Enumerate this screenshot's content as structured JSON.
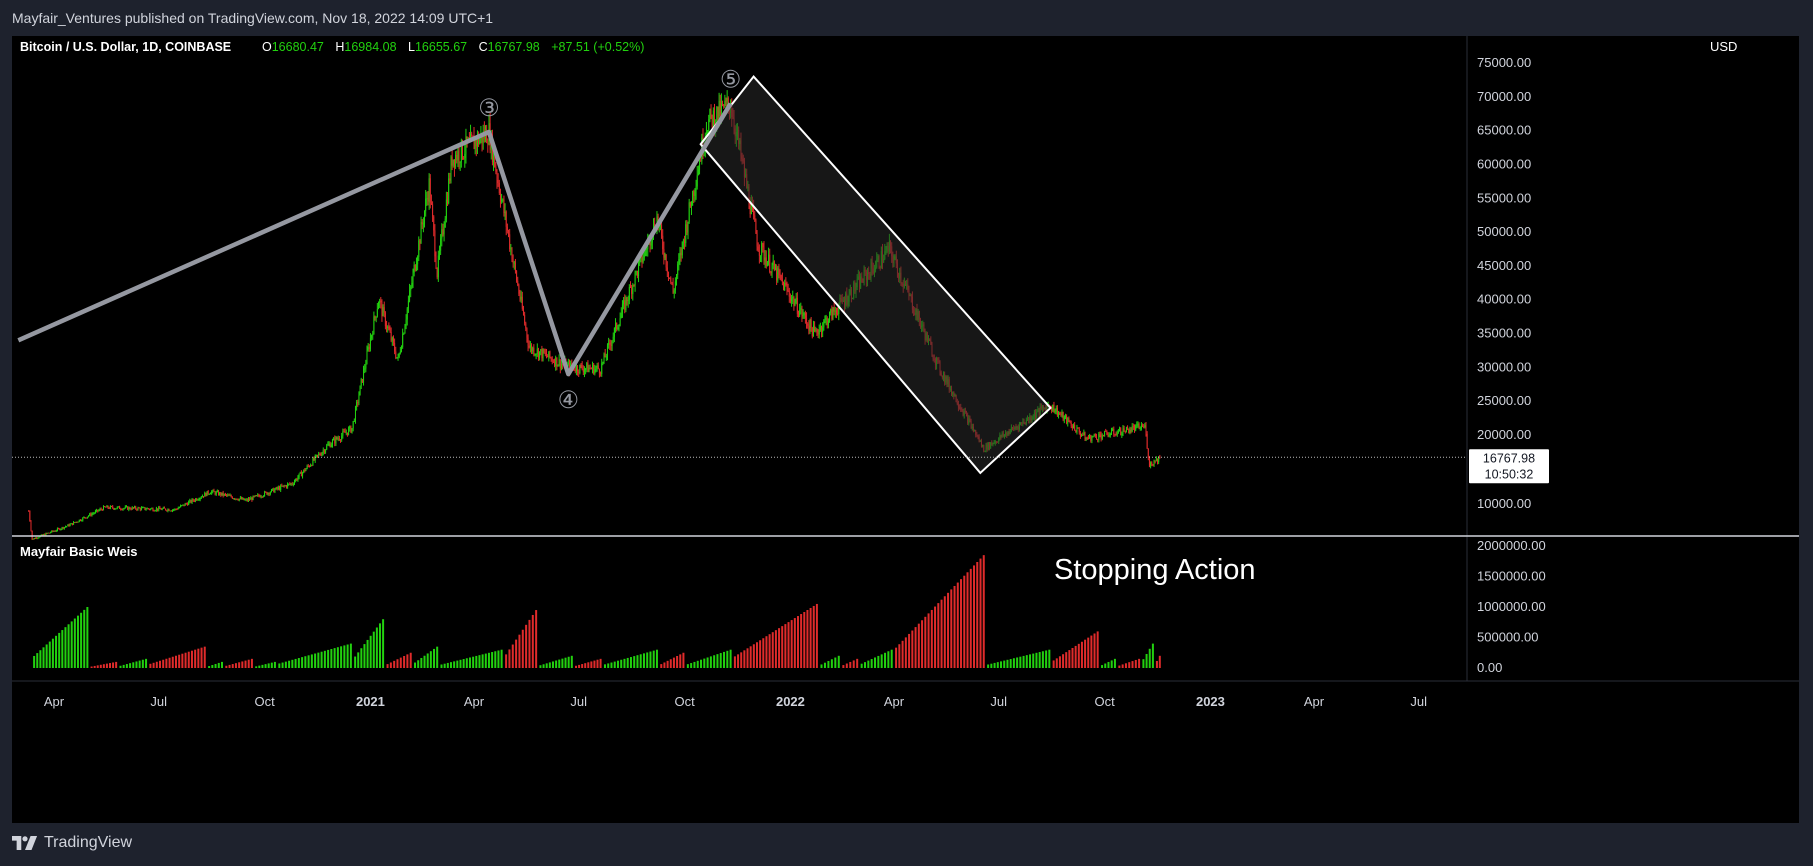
{
  "header": {
    "published": "Mayfair_Ventures published on TradingView.com, Nov 18, 2022 14:09 UTC+1"
  },
  "footer": {
    "brand": "TradingView",
    "logo_icon": "tradingview-logo-icon"
  },
  "legend": {
    "symbol": "Bitcoin / U.S. Dollar, 1D, COINBASE",
    "open_label": "O",
    "open": "16680.47",
    "high_label": "H",
    "high": "16984.08",
    "low_label": "L",
    "low": "16655.67",
    "close_label": "C",
    "close": "16767.98",
    "change": "+87.51 (+0.52%)"
  },
  "colors": {
    "up": "#22d10f",
    "down": "#e02b2b",
    "wave": "#9598a1",
    "channel": "#ffffff",
    "channel_fill": "#2a2a2a"
  },
  "price_pane": {
    "currency": "USD",
    "y_ticks": [
      "75000.00",
      "70000.00",
      "65000.00",
      "60000.00",
      "55000.00",
      "50000.00",
      "45000.00",
      "40000.00",
      "35000.00",
      "30000.00",
      "25000.00",
      "20000.00",
      "10000.00"
    ],
    "last_price_label": "16767.98",
    "countdown_label": "10:50:32"
  },
  "volume_pane": {
    "title": "Mayfair Basic Weis",
    "annotation": "Stopping Action",
    "y_ticks": [
      "2000000.00",
      "1500000.00",
      "1000000.00",
      "500000.00",
      "0.00"
    ]
  },
  "x_axis": {
    "ticks": [
      "Apr",
      "Jul",
      "Oct",
      "2021",
      "Apr",
      "Jul",
      "Oct",
      "2022",
      "Apr",
      "Jul",
      "Oct",
      "2023",
      "Apr",
      "Jul"
    ]
  },
  "chart_data": {
    "type": "candlestick",
    "title": "Bitcoin / U.S. Dollar, 1D, COINBASE",
    "x_range": [
      "2020-03",
      "2023-08"
    ],
    "ylim": [
      5000,
      80000
    ],
    "price_path": [
      [
        "2020-03-10",
        9000
      ],
      [
        "2020-03-13",
        4900
      ],
      [
        "2020-04-15",
        7000
      ],
      [
        "2020-05-15",
        9500
      ],
      [
        "2020-07-15",
        9200
      ],
      [
        "2020-08-15",
        11800
      ],
      [
        "2020-09-15",
        10500
      ],
      [
        "2020-10-25",
        13000
      ],
      [
        "2020-11-25",
        18500
      ],
      [
        "2020-12-16",
        21000
      ],
      [
        "2021-01-08",
        40000
      ],
      [
        "2021-01-25",
        31000
      ],
      [
        "2021-02-21",
        57000
      ],
      [
        "2021-02-28",
        44000
      ],
      [
        "2021-03-13",
        61000
      ],
      [
        "2021-04-14",
        64800
      ],
      [
        "2021-05-19",
        33000
      ],
      [
        "2021-06-22",
        30000
      ],
      [
        "2021-07-20",
        29800
      ],
      [
        "2021-09-07",
        52000
      ],
      [
        "2021-09-21",
        41000
      ],
      [
        "2021-10-20",
        66000
      ],
      [
        "2021-11-10",
        69000
      ],
      [
        "2021-12-04",
        48000
      ],
      [
        "2022-01-22",
        35000
      ],
      [
        "2022-03-28",
        47500
      ],
      [
        "2022-05-10",
        30000
      ],
      [
        "2022-06-18",
        18000
      ],
      [
        "2022-08-14",
        24500
      ],
      [
        "2022-09-15",
        19500
      ],
      [
        "2022-11-05",
        21300
      ],
      [
        "2022-11-09",
        15700
      ],
      [
        "2022-11-18",
        16768
      ]
    ],
    "elliott_wave": [
      {
        "label": "③",
        "date": "2021-04-14",
        "price": 64800
      },
      {
        "label": "④",
        "date": "2021-06-22",
        "price": 29000
      },
      {
        "label": "⑤",
        "date": "2021-11-10",
        "price": 69000
      }
    ],
    "wave_line_start": {
      "date": "2020-03-01",
      "price": 34000
    },
    "descending_channel": {
      "upper": [
        [
          "2021-11-30",
          73000
        ],
        [
          "2022-08-15",
          24000
        ]
      ],
      "lower": [
        [
          "2021-10-15",
          63000
        ],
        [
          "2022-06-15",
          14500
        ]
      ]
    },
    "weis_volume_waves": [
      {
        "start": "2020-03-12",
        "end": "2020-04-30",
        "dir": "up",
        "peak": 1000000
      },
      {
        "start": "2020-05-01",
        "end": "2020-05-25",
        "dir": "down",
        "peak": 100000
      },
      {
        "start": "2020-05-26",
        "end": "2020-06-20",
        "dir": "up",
        "peak": 150000
      },
      {
        "start": "2020-06-21",
        "end": "2020-08-10",
        "dir": "down",
        "peak": 350000
      },
      {
        "start": "2020-08-11",
        "end": "2020-08-25",
        "dir": "up",
        "peak": 100000
      },
      {
        "start": "2020-08-26",
        "end": "2020-09-20",
        "dir": "down",
        "peak": 150000
      },
      {
        "start": "2020-09-21",
        "end": "2020-10-10",
        "dir": "up",
        "peak": 100000
      },
      {
        "start": "2020-10-11",
        "end": "2020-12-15",
        "dir": "up",
        "peak": 400000
      },
      {
        "start": "2020-12-16",
        "end": "2021-01-12",
        "dir": "up",
        "peak": 800000
      },
      {
        "start": "2021-01-13",
        "end": "2021-02-05",
        "dir": "down",
        "peak": 250000
      },
      {
        "start": "2021-02-06",
        "end": "2021-02-28",
        "dir": "up",
        "peak": 350000
      },
      {
        "start": "2021-03-01",
        "end": "2021-04-25",
        "dir": "up",
        "peak": 300000
      },
      {
        "start": "2021-04-26",
        "end": "2021-05-25",
        "dir": "down",
        "peak": 950000
      },
      {
        "start": "2021-05-26",
        "end": "2021-06-25",
        "dir": "up",
        "peak": 200000
      },
      {
        "start": "2021-06-26",
        "end": "2021-07-20",
        "dir": "down",
        "peak": 150000
      },
      {
        "start": "2021-07-21",
        "end": "2021-09-07",
        "dir": "up",
        "peak": 300000
      },
      {
        "start": "2021-09-08",
        "end": "2021-09-30",
        "dir": "down",
        "peak": 250000
      },
      {
        "start": "2021-10-01",
        "end": "2021-11-10",
        "dir": "up",
        "peak": 300000
      },
      {
        "start": "2021-11-11",
        "end": "2022-01-24",
        "dir": "down",
        "peak": 1050000
      },
      {
        "start": "2022-01-25",
        "end": "2022-02-12",
        "dir": "up",
        "peak": 200000
      },
      {
        "start": "2022-02-13",
        "end": "2022-02-28",
        "dir": "down",
        "peak": 150000
      },
      {
        "start": "2022-03-01",
        "end": "2022-03-30",
        "dir": "up",
        "peak": 300000
      },
      {
        "start": "2022-03-31",
        "end": "2022-06-18",
        "dir": "down",
        "peak": 1850000
      },
      {
        "start": "2022-06-19",
        "end": "2022-08-14",
        "dir": "up",
        "peak": 300000
      },
      {
        "start": "2022-08-15",
        "end": "2022-09-25",
        "dir": "down",
        "peak": 600000
      },
      {
        "start": "2022-09-26",
        "end": "2022-10-10",
        "dir": "up",
        "peak": 150000
      },
      {
        "start": "2022-10-11",
        "end": "2022-10-31",
        "dir": "down",
        "peak": 150000
      },
      {
        "start": "2022-11-01",
        "end": "2022-11-12",
        "dir": "up",
        "peak": 400000
      },
      {
        "start": "2022-11-13",
        "end": "2022-11-18",
        "dir": "down",
        "peak": 200000
      }
    ]
  }
}
